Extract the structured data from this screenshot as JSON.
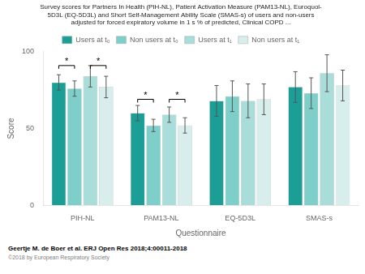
{
  "chart_data": {
    "type": "bar",
    "title": "Survey scores for Partners In Health (PIH-NL), Patient Activation Measure (PAM13-NL), Euroquol-\n5D3L (EQ-5D3L) and Short Self-Management Ability Scale (SMAS-s) of users and non-users\nadjusted for forced expiratory volume in 1 s % of predicted, Clinical COPD ...",
    "xlabel": "Questionnaire",
    "ylabel": "Score",
    "categories": [
      "PIH-NL",
      "PAM13-NL",
      "EQ-5D3L",
      "SMAS-s"
    ],
    "series": [
      {
        "name": "Users at t₀",
        "color": "#1a9e96",
        "values": [
          80,
          60,
          68,
          77
        ],
        "errors": [
          5,
          5,
          10,
          10
        ]
      },
      {
        "name": "Non users at t₀",
        "color": "#7ececa",
        "values": [
          76,
          52,
          71,
          73
        ],
        "errors": [
          5,
          4,
          10,
          10
        ]
      },
      {
        "name": "Users at t₁",
        "color": "#a8ddd9",
        "values": [
          84,
          59,
          68,
          86
        ],
        "errors": [
          7,
          5,
          11,
          12
        ]
      },
      {
        "name": "Non users at t₁",
        "color": "#d8eeed",
        "values": [
          77,
          52,
          69,
          78
        ],
        "errors": [
          7,
          5,
          10,
          10
        ]
      }
    ],
    "ylim": [
      0,
      100
    ],
    "yticks": [
      0,
      50,
      100
    ],
    "grid": false,
    "legend": "top",
    "annotations": [
      {
        "category": "PIH-NL",
        "from": "Users at t₀",
        "to": "Non users at t₀",
        "y": 91,
        "label": "*"
      },
      {
        "category": "PIH-NL",
        "from": "Users at t₁",
        "to": "Non users at t₁",
        "y": 91,
        "label": "*"
      },
      {
        "category": "PAM13-NL",
        "from": "Users at t₀",
        "to": "Non users at t₀",
        "y": 69,
        "label": "*"
      },
      {
        "category": "PAM13-NL",
        "from": "Users at t₁",
        "to": "Non users at t₁",
        "y": 69,
        "label": "*"
      }
    ],
    "footer": "Geertje M. de Boer et al. ERJ Open Res 2018;4:00011-2018",
    "copyright": "©2018 by European Respiratory Society"
  }
}
